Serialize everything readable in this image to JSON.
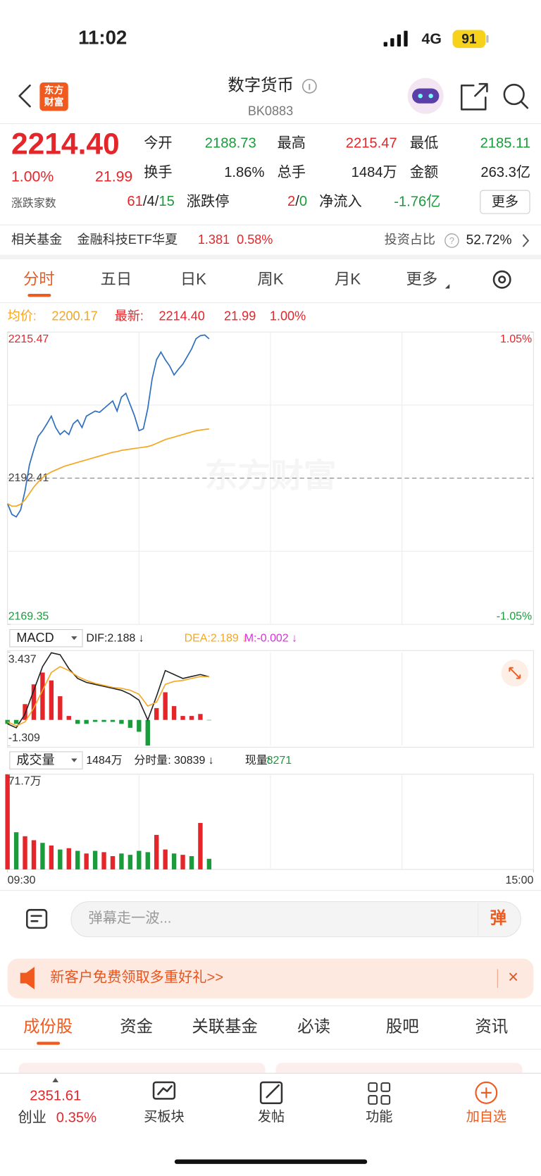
{
  "status": {
    "time": "11:02",
    "network": "4G",
    "battery": "91"
  },
  "header": {
    "logo_top": "东方",
    "logo_bottom": "财富",
    "title": "数字货币",
    "code": "BK0883"
  },
  "quote": {
    "price": "2214.40",
    "pct": "1.00%",
    "change": "21.99",
    "fields": [
      {
        "label": "今开",
        "value": "2188.73"
      },
      {
        "label": "最高",
        "value": "2215.47"
      },
      {
        "label": "最低",
        "value": "2185.11"
      },
      {
        "label": "换手",
        "value": "1.86%"
      },
      {
        "label": "总手",
        "value": "1484万"
      },
      {
        "label": "金额",
        "value": "263.3亿"
      }
    ],
    "breadth_label": "涨跌家数",
    "up": "61",
    "flat": "4",
    "down": "15",
    "separator": "/",
    "limit_label": "涨跌停",
    "limit_up": "2",
    "limit_down": "0",
    "flow_label": "净流入",
    "flow": "-1.76亿",
    "more": "更多"
  },
  "fund": {
    "label": "相关基金",
    "name": "金融科技ETF华夏",
    "price": "1.381",
    "pct": "0.58%",
    "ratio_label": "投资占比",
    "help": "?",
    "ratio": "52.72%"
  },
  "tabs": [
    "分时",
    "五日",
    "日K",
    "周K",
    "月K",
    "更多"
  ],
  "info_line": {
    "avg_label": "均价:",
    "avg": "2200.17",
    "last_label": "最新:",
    "last": "2214.40",
    "change": "21.99",
    "pct": "1.00%"
  },
  "chart_data": [
    {
      "type": "line",
      "watermark": "东方财富",
      "x": [
        0,
        2,
        4,
        6,
        8,
        10,
        12,
        14,
        16,
        18,
        20,
        22,
        24,
        26,
        28,
        30,
        32,
        34,
        36,
        38,
        40,
        42,
        44,
        46,
        48,
        50,
        52,
        54,
        56,
        58,
        60,
        62,
        64,
        66,
        68,
        70,
        72,
        74,
        76,
        78,
        80,
        82,
        84,
        86,
        88,
        90,
        92
      ],
      "xlim": [
        0,
        240
      ],
      "ylim": [
        2169.35,
        2215.47
      ],
      "yticks": [
        2215.47,
        2192.41,
        2169.35
      ],
      "baseline": 2192.41,
      "y2lim": [
        -1.05,
        1.05
      ],
      "y2ticks": [
        {
          "value": 1.05,
          "label": "1.05%"
        },
        {
          "value": -1.05,
          "label": "-1.05%"
        }
      ],
      "up_color": "#e4262b",
      "down_color": "#1a9b3c",
      "series": [
        {
          "color": "#2f6fbf",
          "values": [
            2188.4,
            2186.7,
            2186.3,
            2187.4,
            2190.4,
            2194.5,
            2196.9,
            2199.0,
            2199.9,
            2201.0,
            2202.2,
            2200.4,
            2199.3,
            2199.9,
            2199.3,
            2201.0,
            2201.6,
            2200.4,
            2202.2,
            2202.6,
            2203.0,
            2202.8,
            2203.4,
            2204.0,
            2204.6,
            2203.0,
            2205.2,
            2205.8,
            2204.0,
            2202.2,
            2199.9,
            2200.2,
            2203.4,
            2208.1,
            2211.1,
            2212.3,
            2211.1,
            2210.1,
            2208.7,
            2209.6,
            2210.4,
            2211.6,
            2212.8,
            2214.4,
            2214.9,
            2215.0,
            2214.4
          ]
        },
        {
          "color": "#f5a623",
          "values": [
            2188.4,
            2188.0,
            2188.0,
            2188.3,
            2189.0,
            2190.0,
            2191.0,
            2191.8,
            2192.5,
            2193.0,
            2193.4,
            2193.7,
            2194.0,
            2194.3,
            2194.5,
            2194.7,
            2194.9,
            2195.1,
            2195.3,
            2195.5,
            2195.7,
            2195.9,
            2196.1,
            2196.3,
            2196.5,
            2196.6,
            2196.8,
            2196.9,
            2197.0,
            2197.1,
            2197.2,
            2197.3,
            2197.4,
            2197.6,
            2197.9,
            2198.2,
            2198.5,
            2198.7,
            2198.9,
            2199.1,
            2199.3,
            2199.5,
            2199.7,
            2199.9,
            2200.0,
            2200.1,
            2200.17
          ]
        }
      ]
    },
    {
      "type": "macd",
      "selector": "MACD",
      "legend": [
        {
          "text": "DIF:2.188 ↓",
          "color": "#222222"
        },
        {
          "text": "DEA:2.189 ↓",
          "color": "#f5a623"
        },
        {
          "text": "M:-0.002 ↓",
          "color": "#d633d6"
        }
      ],
      "x": [
        0,
        4,
        8,
        12,
        16,
        20,
        24,
        28,
        32,
        36,
        40,
        44,
        48,
        52,
        56,
        60,
        64,
        68,
        72,
        76,
        80,
        84,
        88,
        92
      ],
      "xlim": [
        0,
        240
      ],
      "ylim": [
        -1.309,
        3.437
      ],
      "yticks": [
        3.437,
        -1.309
      ],
      "series": [
        {
          "color": "#222222",
          "values": [
            -0.2,
            -0.4,
            0.3,
            1.5,
            2.7,
            3.4,
            3.3,
            2.6,
            2.1,
            1.9,
            1.8,
            1.7,
            1.6,
            1.5,
            1.3,
            1.0,
            0.0,
            1.2,
            2.5,
            2.3,
            2.1,
            2.2,
            2.3,
            2.188
          ]
        },
        {
          "color": "#f5a623",
          "values": [
            -0.1,
            -0.3,
            -0.1,
            0.6,
            1.5,
            2.4,
            2.7,
            2.5,
            2.2,
            2.0,
            1.85,
            1.75,
            1.65,
            1.6,
            1.5,
            1.3,
            0.7,
            0.9,
            1.8,
            1.95,
            2.0,
            2.1,
            2.2,
            2.189
          ]
        }
      ],
      "bars": [
        -0.2,
        -0.2,
        0.8,
        1.8,
        2.4,
        2.0,
        1.2,
        0.2,
        -0.2,
        -0.2,
        -0.1,
        -0.1,
        -0.1,
        -0.2,
        -0.4,
        -0.6,
        -1.3,
        0.6,
        1.4,
        0.7,
        0.2,
        0.2,
        0.3,
        -0.002
      ],
      "up_color": "#e4262b",
      "down_color": "#1a9b3c"
    },
    {
      "type": "bar",
      "selector": "成交量",
      "legend": [
        {
          "text": "1484万",
          "color": "#222222"
        },
        {
          "text": "分时量: 30839 ↓",
          "color": "#222222"
        },
        {
          "text": "现量:",
          "color": "#222222"
        },
        {
          "text": "8271",
          "color": "#1a9b3c"
        }
      ],
      "x": [
        0,
        4,
        8,
        12,
        16,
        20,
        24,
        28,
        32,
        36,
        40,
        44,
        48,
        52,
        56,
        60,
        64,
        68,
        72,
        76,
        80,
        84,
        88,
        92
      ],
      "xlim": [
        0,
        240
      ],
      "xticks": [
        {
          "value": 0,
          "label": "09:30"
        },
        {
          "value": 240,
          "label": "15:00"
        }
      ],
      "ylim": [
        0,
        71.7
      ],
      "yticks": [
        {
          "value": 71.7,
          "label": "71.7万"
        }
      ],
      "values": [
        71.7,
        28,
        25,
        22,
        20,
        18,
        15,
        16,
        14,
        12,
        14,
        13,
        10,
        12,
        11,
        14,
        13,
        26,
        15,
        12,
        11,
        10,
        35,
        8
      ],
      "colors": [
        "#e4262b",
        "#1a9b3c",
        "#e4262b",
        "#e4262b",
        "#1a9b3c",
        "#e4262b",
        "#1a9b3c",
        "#e4262b",
        "#1a9b3c",
        "#e4262b",
        "#1a9b3c",
        "#e4262b",
        "#e4262b",
        "#1a9b3c",
        "#1a9b3c",
        "#1a9b3c",
        "#1a9b3c",
        "#e4262b",
        "#e4262b",
        "#1a9b3c",
        "#e4262b",
        "#1a9b3c",
        "#e4262b",
        "#1a9b3c"
      ]
    }
  ],
  "comment_bar": {
    "placeholder": "弹幕走一波...",
    "button": "弹"
  },
  "banner": {
    "text": "新客户免费领取多重好礼>>",
    "close": "×"
  },
  "sub_tabs": [
    "成份股",
    "资金",
    "关联基金",
    "必读",
    "股吧",
    "资讯"
  ],
  "bottom_nav": {
    "index_value": "2351.61",
    "index_name": "创业",
    "index_pct": "0.35%",
    "items": [
      "买板块",
      "发帖",
      "功能",
      "加自选"
    ]
  }
}
